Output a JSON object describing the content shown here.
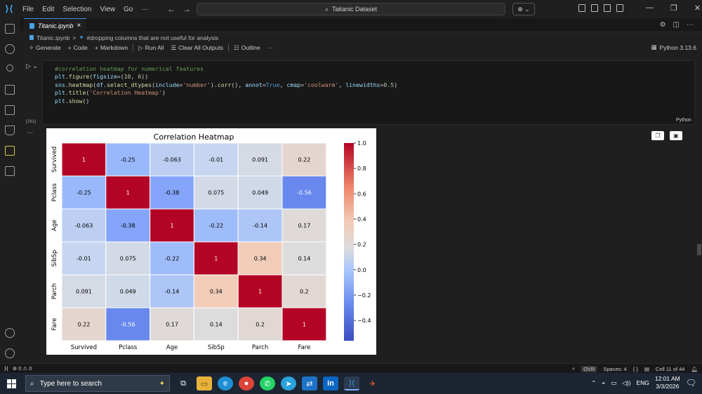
{
  "titlebar": {
    "menu": [
      "File",
      "Edit",
      "Selection",
      "View",
      "Go",
      "···"
    ],
    "command_center": "Taitanic Dataset",
    "copilot_label": "⊕ ⌄"
  },
  "tab": {
    "label": "Titanic.ipynb",
    "close": "×"
  },
  "breadcrumb": {
    "file": "Titanic.ipynb",
    "sep": ">",
    "cell": "#dropping columns that are not useful for analysis"
  },
  "toolbar": {
    "generate": "Generate",
    "code": "Code",
    "markdown": "Markdown",
    "run_all": "Run All",
    "clear_outputs": "Clear All Outputs",
    "outline": "Outline",
    "more": "···"
  },
  "kernel": "Python 3.13.6",
  "cell": {
    "exec_count": "[261]",
    "language": "Python",
    "code_lines": [
      [
        [
          "tok-comment",
          "#correlation heatmap for numerical features"
        ]
      ],
      [
        [
          "tok-plain",
          "plt"
        ],
        [
          "tok-punct",
          "."
        ],
        [
          "tok-fn",
          "figure"
        ],
        [
          "tok-punct",
          "("
        ],
        [
          "tok-plain",
          "figsize"
        ],
        [
          "tok-punct",
          "=("
        ],
        [
          "tok-num",
          "10"
        ],
        [
          "tok-punct",
          ", "
        ],
        [
          "tok-num",
          "6"
        ],
        [
          "tok-punct",
          "))"
        ]
      ],
      [
        [
          "tok-plain",
          "sns"
        ],
        [
          "tok-punct",
          "."
        ],
        [
          "tok-fn",
          "heatmap"
        ],
        [
          "tok-punct",
          "("
        ],
        [
          "tok-plain",
          "df"
        ],
        [
          "tok-punct",
          "."
        ],
        [
          "tok-fn",
          "select_dtypes"
        ],
        [
          "tok-punct",
          "("
        ],
        [
          "tok-plain",
          "include"
        ],
        [
          "tok-punct",
          "="
        ],
        [
          "tok-str",
          "'number'"
        ],
        [
          "tok-punct",
          ")."
        ],
        [
          "tok-fn",
          "corr"
        ],
        [
          "tok-punct",
          "(), "
        ],
        [
          "tok-plain",
          "annot"
        ],
        [
          "tok-punct",
          "="
        ],
        [
          "tok-kw",
          "True"
        ],
        [
          "tok-punct",
          ", "
        ],
        [
          "tok-plain",
          "cmap"
        ],
        [
          "tok-punct",
          "="
        ],
        [
          "tok-str",
          "'coolwarm'"
        ],
        [
          "tok-punct",
          ", "
        ],
        [
          "tok-plain",
          "linewidths"
        ],
        [
          "tok-punct",
          "="
        ],
        [
          "tok-num",
          "0.5"
        ],
        [
          "tok-punct",
          ")"
        ]
      ],
      [
        [
          "tok-plain",
          "plt"
        ],
        [
          "tok-punct",
          "."
        ],
        [
          "tok-fn",
          "title"
        ],
        [
          "tok-punct",
          "("
        ],
        [
          "tok-str",
          "'Correlation Heatmap'"
        ],
        [
          "tok-punct",
          ")"
        ]
      ],
      [
        [
          "tok-plain",
          "plt"
        ],
        [
          "tok-punct",
          "."
        ],
        [
          "tok-fn",
          "show"
        ],
        [
          "tok-punct",
          "()"
        ]
      ]
    ]
  },
  "chart_data": {
    "type": "heatmap",
    "title": "Correlation Heatmap",
    "categories": [
      "Survived",
      "Pclass",
      "Age",
      "SibSp",
      "Parch",
      "Fare"
    ],
    "values": [
      [
        1,
        -0.25,
        -0.063,
        -0.01,
        0.091,
        0.22
      ],
      [
        -0.25,
        1,
        -0.38,
        0.075,
        0.049,
        -0.56
      ],
      [
        -0.063,
        -0.38,
        1,
        -0.22,
        -0.14,
        0.17
      ],
      [
        -0.01,
        0.075,
        -0.22,
        1,
        0.34,
        0.14
      ],
      [
        0.091,
        0.049,
        -0.14,
        0.34,
        1,
        0.2
      ],
      [
        0.22,
        -0.56,
        0.17,
        0.14,
        0.2,
        1
      ]
    ],
    "labels": [
      [
        "1",
        "-0.25",
        "-0.063",
        "-0.01",
        "0.091",
        "0.22"
      ],
      [
        "-0.25",
        "1",
        "-0.38",
        "0.075",
        "0.049",
        "-0.56"
      ],
      [
        "-0.063",
        "-0.38",
        "1",
        "-0.22",
        "-0.14",
        "0.17"
      ],
      [
        "-0.01",
        "0.075",
        "-0.22",
        "1",
        "0.34",
        "0.14"
      ],
      [
        "0.091",
        "0.049",
        "-0.14",
        "0.34",
        "1",
        "0.2"
      ],
      [
        "0.22",
        "-0.56",
        "0.17",
        "0.14",
        "0.2",
        "1"
      ]
    ],
    "colorbar": {
      "range": [
        -0.56,
        1.0
      ],
      "ticks": [
        1.0,
        0.8,
        0.6,
        0.4,
        0.2,
        0.0,
        -0.2,
        -0.4
      ],
      "tick_labels": [
        "1.0",
        "0.8",
        "0.6",
        "0.4",
        "0.2",
        "0.0",
        "−0.2",
        "−0.4"
      ]
    },
    "cmap": "coolwarm"
  },
  "statusbar": {
    "problems": "⊗ 0 ⚠ 0",
    "ovr": "OVR",
    "spaces": "Spaces: 4",
    "braces": "{ }",
    "cell_pos": "Cell 11 of 44"
  },
  "taskbar": {
    "search_placeholder": "Type here to search",
    "lang": "ENG",
    "time": "12:01 AM",
    "date": "3/3/2026"
  }
}
